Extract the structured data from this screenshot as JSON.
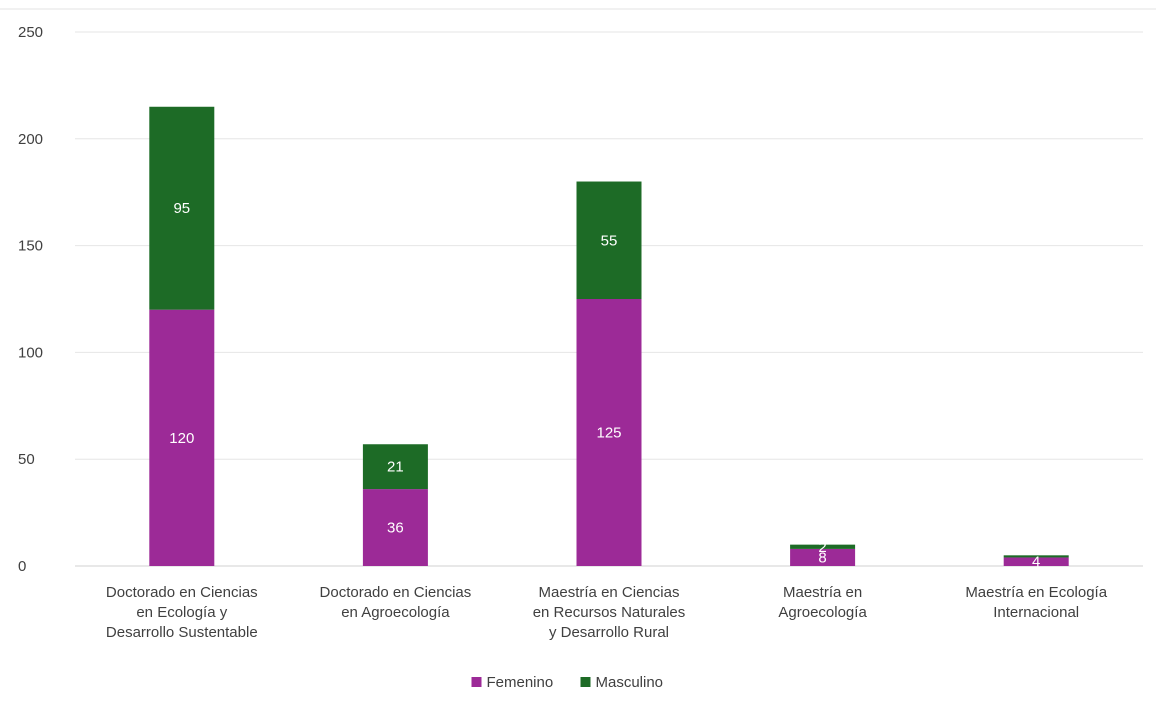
{
  "chart_data": {
    "type": "bar",
    "stacked": true,
    "title": "",
    "xlabel": "",
    "ylabel": "",
    "ylim": [
      0,
      250
    ],
    "yticks": [
      0,
      50,
      100,
      150,
      200,
      250
    ],
    "grid": true,
    "legend_position": "bottom",
    "categories": [
      [
        "Doctorado en Ciencias",
        "en Ecología y",
        "Desarrollo Sustentable"
      ],
      [
        "Doctorado en Ciencias",
        "en Agroecología"
      ],
      [
        "Maestría en Ciencias",
        "en Recursos Naturales",
        "y Desarrollo Rural"
      ],
      [
        "Maestría en",
        "Agroecología"
      ],
      [
        "Maestría en Ecología",
        "Internacional"
      ]
    ],
    "series": [
      {
        "name": "Femenino",
        "color": "#9c2a97",
        "values": [
          120,
          36,
          125,
          8,
          4
        ]
      },
      {
        "name": "Masculino",
        "color": "#1d6b26",
        "values": [
          95,
          21,
          55,
          2,
          1
        ]
      }
    ],
    "data_labels": {
      "Femenino": [
        "120",
        "36",
        "125",
        "8",
        "4"
      ],
      "Masculino": [
        "95",
        "21",
        "55",
        "2",
        ""
      ]
    }
  }
}
